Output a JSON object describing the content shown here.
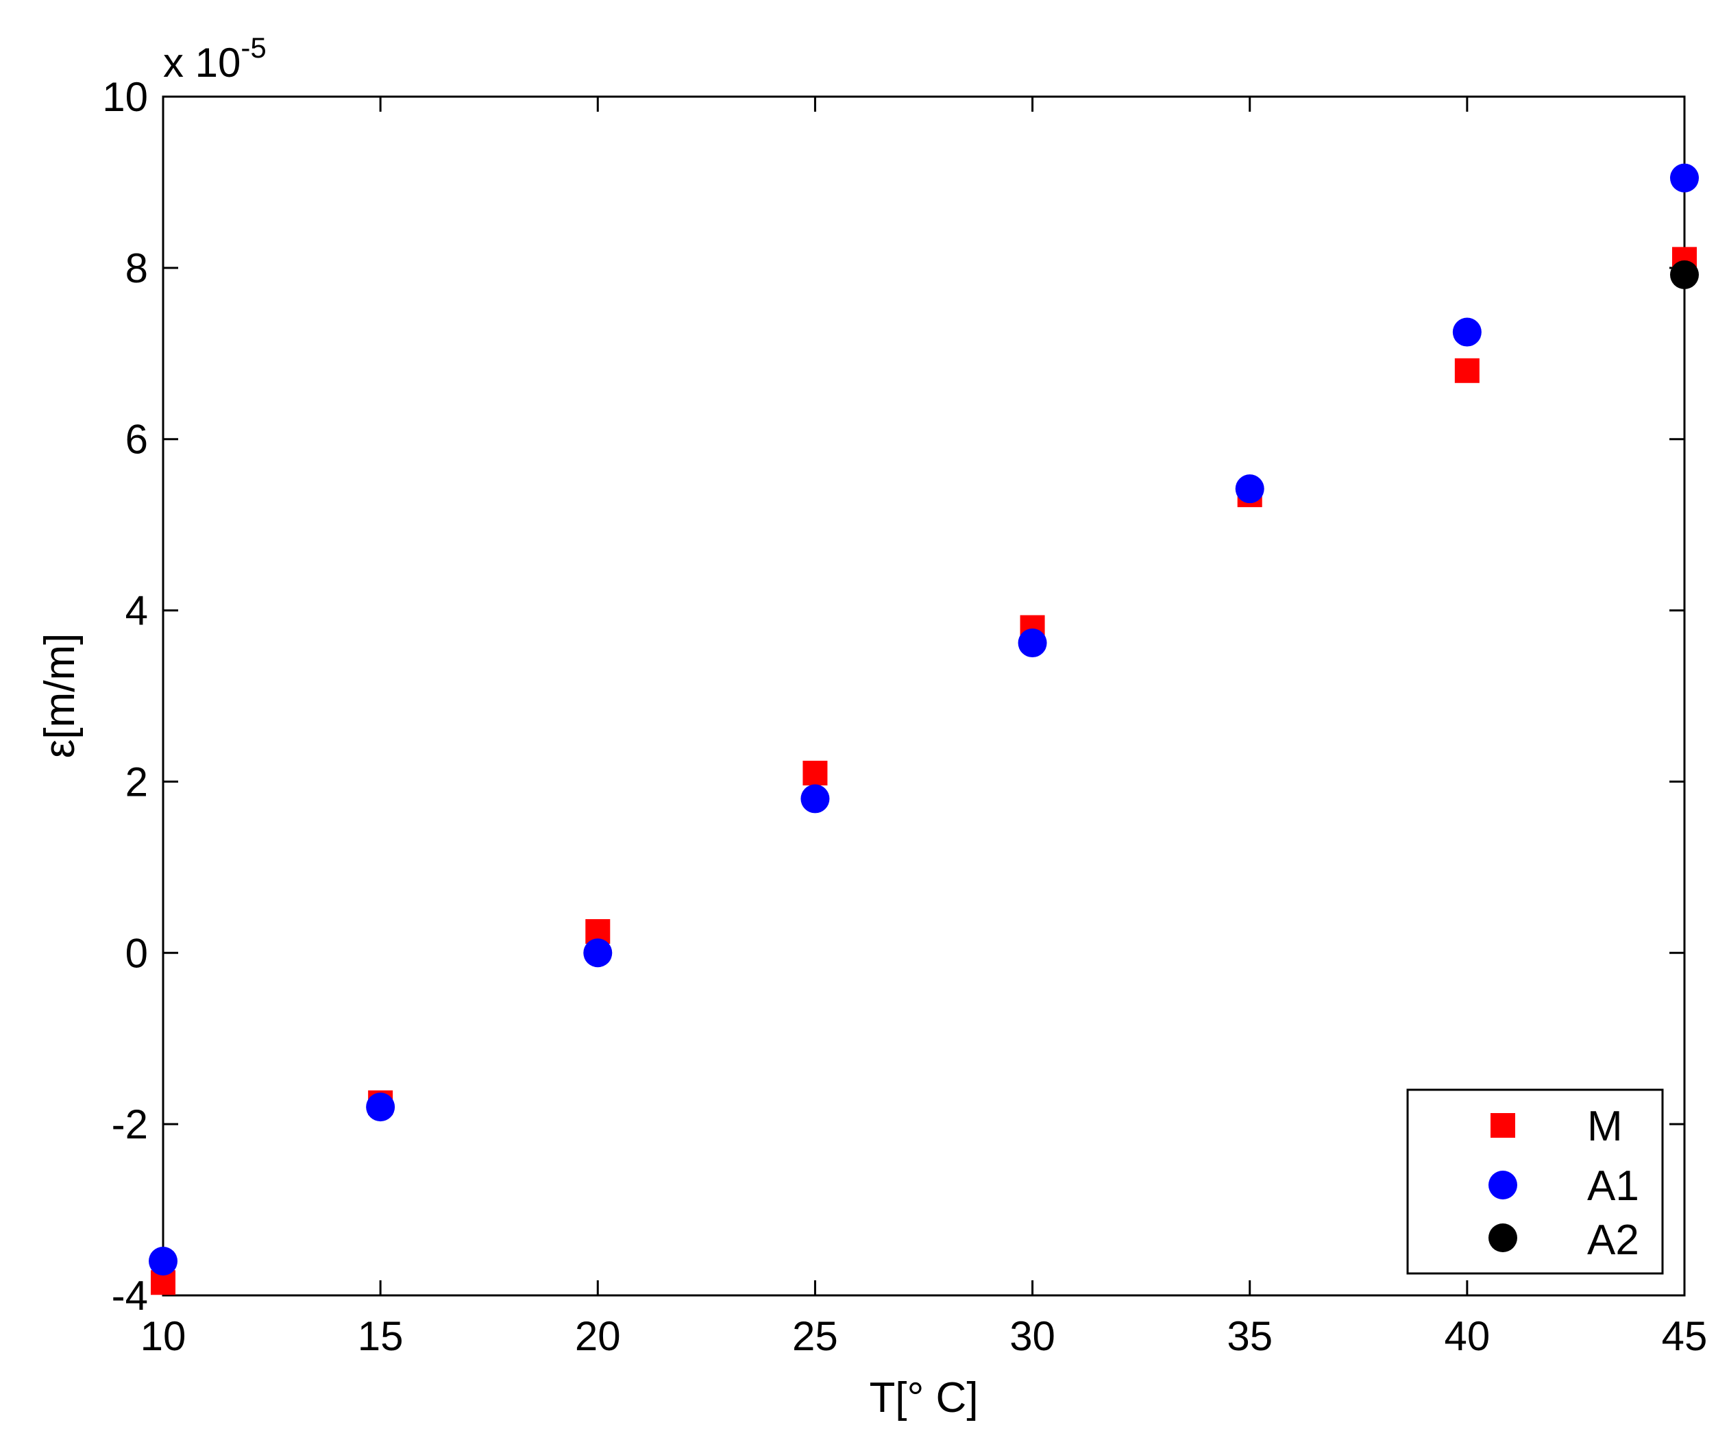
{
  "chart_data": {
    "type": "scatter",
    "title": "",
    "xlabel": "T[° C]",
    "ylabel": "ε[m/m]",
    "y_exponent_base": "x 10",
    "y_exponent_power": "-5",
    "xlim": [
      10,
      45
    ],
    "ylim": [
      -4,
      10
    ],
    "x_ticks": [
      10,
      15,
      20,
      25,
      30,
      35,
      40,
      45
    ],
    "y_ticks": [
      -4,
      -2,
      0,
      2,
      4,
      6,
      8,
      10
    ],
    "x_tick_labels": [
      "10",
      "15",
      "20",
      "25",
      "30",
      "35",
      "40",
      "45"
    ],
    "y_tick_labels": [
      "-4",
      "-2",
      "0",
      "2",
      "4",
      "6",
      "8",
      "10"
    ],
    "grid": false,
    "legend_position": "bottom-right",
    "series": [
      {
        "name": "M",
        "marker": "square",
        "color": "#ff0000",
        "x": [
          10,
          15,
          20,
          25,
          30,
          35,
          40,
          45
        ],
        "y": [
          -3.85,
          -1.75,
          0.25,
          2.1,
          3.8,
          5.35,
          6.8,
          8.1
        ]
      },
      {
        "name": "A1",
        "marker": "circle",
        "color": "#0000ff",
        "x": [
          10,
          15,
          20,
          25,
          30,
          35,
          40,
          45
        ],
        "y": [
          -3.6,
          -1.8,
          0.0,
          1.8,
          3.62,
          5.42,
          7.25,
          9.05
        ]
      },
      {
        "name": "A2",
        "marker": "circle",
        "color": "#000000",
        "x": [
          45
        ],
        "y": [
          7.92
        ]
      }
    ]
  }
}
